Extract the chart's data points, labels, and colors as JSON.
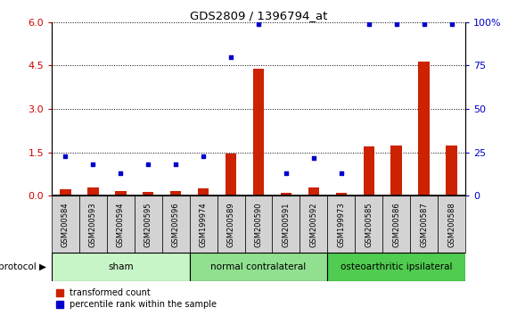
{
  "title": "GDS2809 / 1396794_at",
  "samples": [
    "GSM200584",
    "GSM200593",
    "GSM200594",
    "GSM200595",
    "GSM200596",
    "GSM199974",
    "GSM200589",
    "GSM200590",
    "GSM200591",
    "GSM200592",
    "GSM199973",
    "GSM200585",
    "GSM200586",
    "GSM200587",
    "GSM200588"
  ],
  "red_values": [
    0.22,
    0.28,
    0.18,
    0.15,
    0.18,
    0.25,
    1.45,
    4.4,
    0.12,
    0.28,
    0.12,
    1.7,
    1.75,
    4.65,
    1.75
  ],
  "blue_values": [
    23,
    18,
    13,
    18,
    18,
    23,
    80,
    99,
    13,
    22,
    13,
    99,
    99,
    99,
    99
  ],
  "groups": [
    {
      "label": "sham",
      "start": 0,
      "end": 5,
      "color": "#c8f5c8"
    },
    {
      "label": "normal contralateral",
      "start": 5,
      "end": 10,
      "color": "#90e090"
    },
    {
      "label": "osteoarthritic ipsilateral",
      "start": 10,
      "end": 15,
      "color": "#50cc50"
    }
  ],
  "left_ylim": [
    0,
    6
  ],
  "right_ylim": [
    0,
    100
  ],
  "left_yticks": [
    0,
    1.5,
    3.0,
    4.5,
    6.0
  ],
  "right_yticks": [
    0,
    25,
    50,
    75,
    100
  ],
  "right_yticklabels": [
    "0",
    "25",
    "50",
    "75",
    "100%"
  ],
  "left_color": "#cc0000",
  "right_color": "#0000cc",
  "bar_color": "#cc2200",
  "dot_color": "#0000cc",
  "legend_items": [
    "transformed count",
    "percentile rank within the sample"
  ],
  "protocol_label": "protocol",
  "tick_label_bg": "#d0d0d0"
}
